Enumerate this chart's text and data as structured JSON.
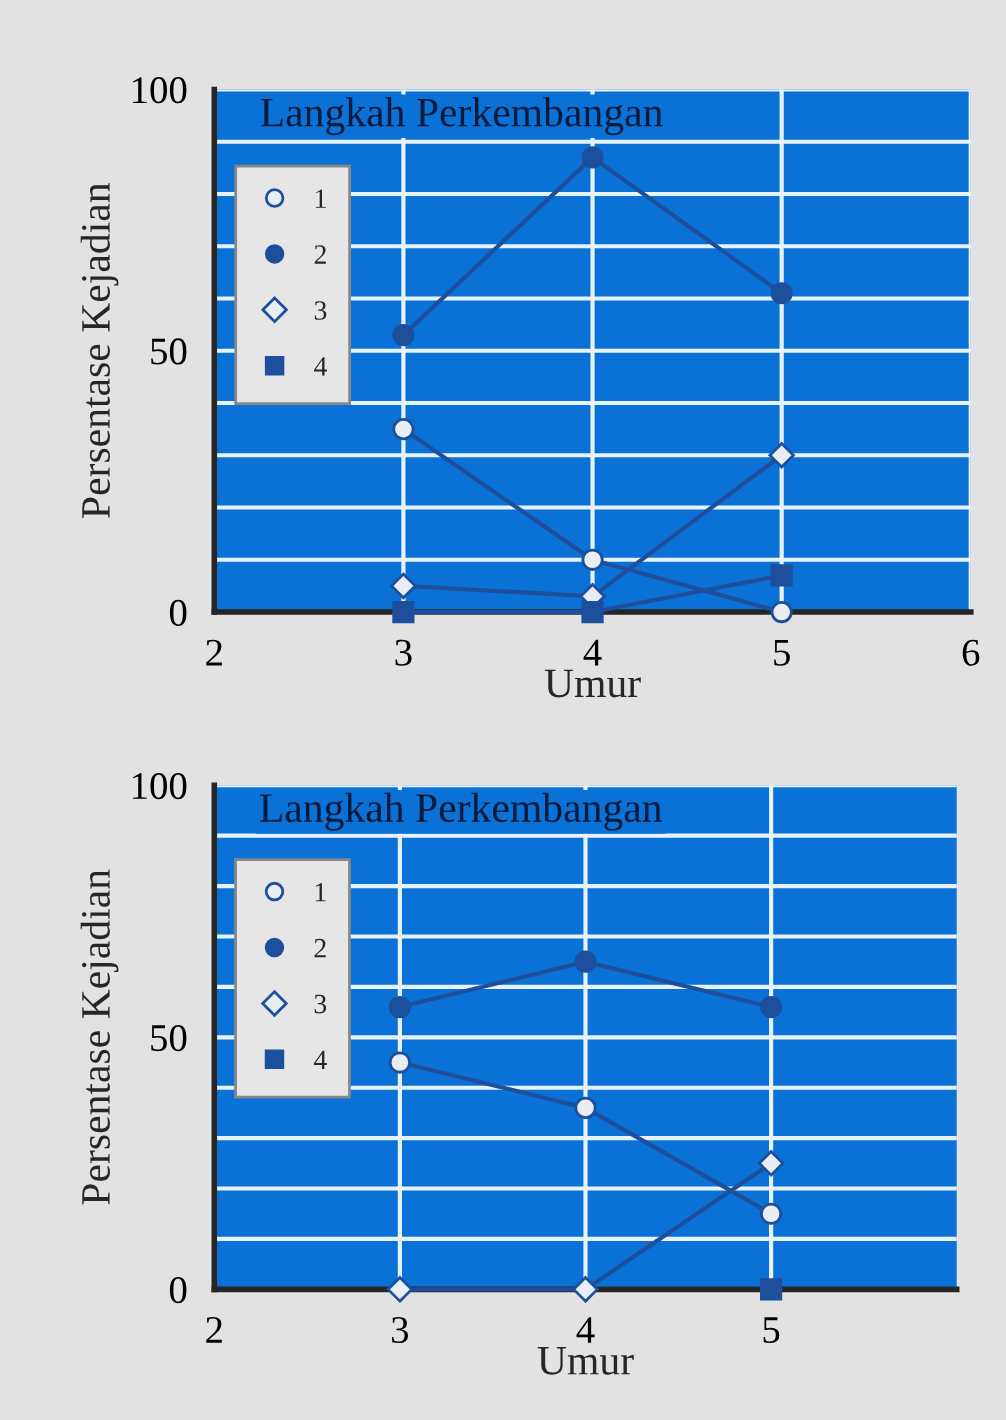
{
  "chart_data": [
    {
      "type": "line",
      "xlabel": "Umur",
      "ylabel": "Persentase Kejadian",
      "legend_title": "Langkah Perkembangan",
      "x": [
        3,
        4,
        5
      ],
      "xlim": [
        2,
        6
      ],
      "xticks": [
        2,
        3,
        4,
        5,
        6
      ],
      "ylim": [
        0,
        100
      ],
      "yticks": [
        0,
        {
          "value": 10,
          "label": null
        },
        {
          "value": 20,
          "label": null
        },
        {
          "value": 30,
          "label": null
        },
        {
          "value": 40,
          "label": null
        },
        50,
        {
          "value": 60,
          "label": null
        },
        {
          "value": 70,
          "label": null
        },
        {
          "value": 80,
          "label": null
        },
        {
          "value": 90,
          "label": null
        },
        100
      ],
      "grid": true,
      "legend": "top left",
      "line_style": "solid",
      "series": [
        {
          "name": "1",
          "color": "#e8eef4",
          "marker": "circle",
          "values": [
            35,
            10,
            0
          ]
        },
        {
          "name": "2",
          "color": "#1d4f9c",
          "marker": "circle",
          "values": [
            53,
            87,
            61
          ]
        },
        {
          "name": "3",
          "color": "#e8eef4",
          "marker": "diamond",
          "values": [
            5,
            3,
            30
          ]
        },
        {
          "name": "4",
          "color": "#1d4f9c",
          "marker": "square",
          "values": [
            0,
            0,
            7
          ]
        }
      ]
    },
    {
      "type": "line",
      "xlabel": "Umur",
      "ylabel": "Persentase Kejadian",
      "legend_title": "Langkah Perkembangan",
      "x": [
        3,
        4,
        5
      ],
      "xlim": [
        2,
        6
      ],
      "xticks": [
        2,
        3,
        4,
        5
      ],
      "ylim": [
        0,
        100
      ],
      "yticks": [
        0,
        {
          "value": 10,
          "label": null
        },
        {
          "value": 20,
          "label": null
        },
        {
          "value": 30,
          "label": null
        },
        {
          "value": 40,
          "label": null
        },
        50,
        {
          "value": 60,
          "label": null
        },
        {
          "value": 70,
          "label": null
        },
        {
          "value": 80,
          "label": null
        },
        {
          "value": 90,
          "label": null
        },
        100
      ],
      "grid": true,
      "legend": "top left",
      "line_style": "solid",
      "series": [
        {
          "name": "1",
          "color": "#e8eef4",
          "marker": "circle",
          "values": [
            45,
            36,
            15
          ]
        },
        {
          "name": "2",
          "color": "#1d4f9c",
          "marker": "circle",
          "values": [
            56,
            65,
            56
          ]
        },
        {
          "name": "3",
          "color": "#e8eef4",
          "marker": "diamond",
          "values": [
            0,
            0,
            25
          ]
        },
        {
          "name": "4",
          "color": "#1d4f9c",
          "marker": "square",
          "values": [
            null,
            null,
            0
          ]
        }
      ]
    }
  ]
}
